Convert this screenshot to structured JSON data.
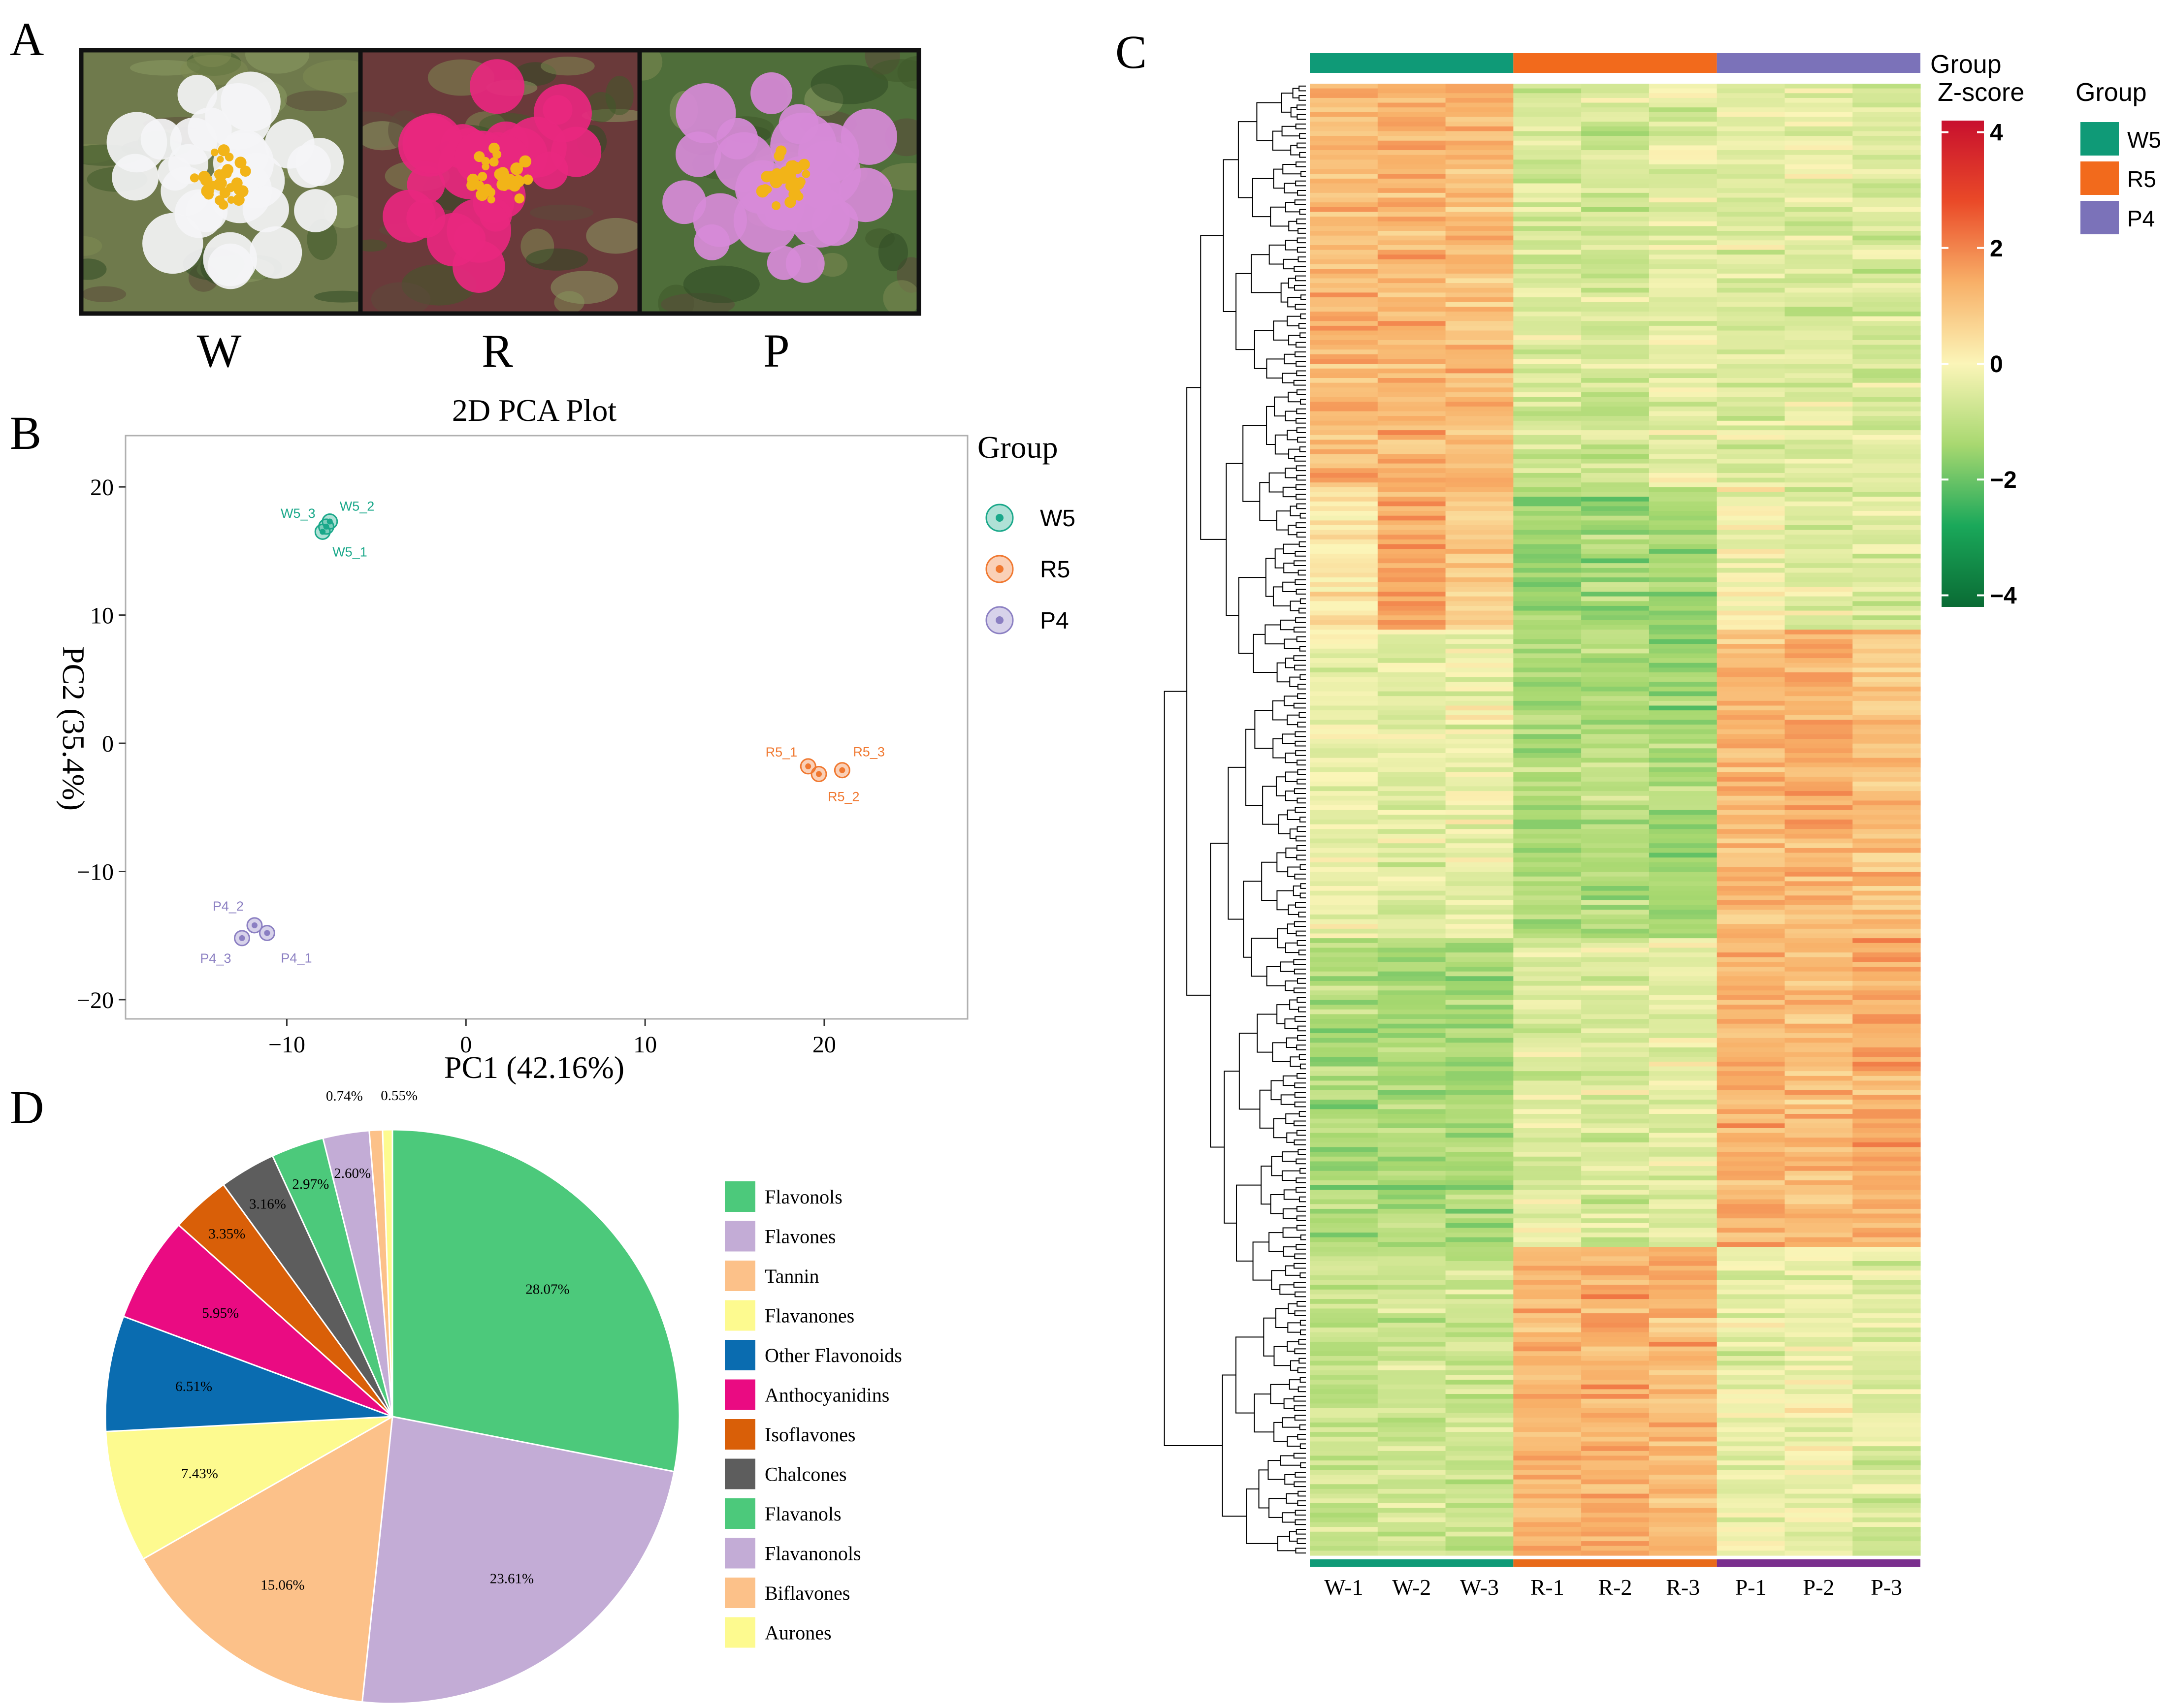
{
  "panels": {
    "A": {
      "label": "A",
      "photos": [
        {
          "caption": "W",
          "petal_color": "#f4f4f6",
          "background": "#6f7a4c"
        },
        {
          "caption": "R",
          "petal_color": "#e8277f",
          "background": "#6a3a3a"
        },
        {
          "caption": "P",
          "petal_color": "#d78ad8",
          "background": "#4f6e3a"
        }
      ]
    },
    "B": {
      "label": "B"
    },
    "C": {
      "label": "C"
    },
    "D": {
      "label": "D"
    }
  },
  "chart_data": [
    {
      "type": "scatter",
      "title": "2D PCA Plot",
      "xlabel": "PC1 (42.16%)",
      "ylabel": "PC2 (35.4%)",
      "xlim": [
        -19,
        28
      ],
      "ylim": [
        -21.5,
        24
      ],
      "xticks": [
        -10,
        0,
        10,
        20
      ],
      "yticks": [
        -20,
        -10,
        0,
        10,
        20
      ],
      "legend_title": "Group",
      "series": [
        {
          "name": "W5",
          "color": "#1aa88a",
          "points": [
            {
              "label": "W5_1",
              "x": -8.0,
              "y": 16.5
            },
            {
              "label": "W5_2",
              "x": -7.6,
              "y": 17.3
            },
            {
              "label": "W5_3",
              "x": -7.8,
              "y": 16.9
            }
          ]
        },
        {
          "name": "R5",
          "color": "#f07830",
          "points": [
            {
              "label": "R5_1",
              "x": 19.1,
              "y": -1.8
            },
            {
              "label": "R5_2",
              "x": 19.7,
              "y": -2.4
            },
            {
              "label": "R5_3",
              "x": 21.0,
              "y": -2.1
            }
          ]
        },
        {
          "name": "P4",
          "color": "#8b7fc2",
          "points": [
            {
              "label": "P4_1",
              "x": -11.1,
              "y": -14.8
            },
            {
              "label": "P4_2",
              "x": -11.8,
              "y": -14.2
            },
            {
              "label": "P4_3",
              "x": -12.5,
              "y": -15.2
            }
          ]
        }
      ]
    },
    {
      "type": "heatmap",
      "columns": [
        "W-1",
        "W-2",
        "W-3",
        "R-1",
        "R-2",
        "R-3",
        "P-1",
        "P-2",
        "P-3"
      ],
      "groups": [
        {
          "name": "W5",
          "color": "#0f9a77",
          "columns": 3,
          "bottom_color": "#0f9a77"
        },
        {
          "name": "R5",
          "color": "#f26a1c",
          "columns": 3,
          "bottom_color": "#e86a1a"
        },
        {
          "name": "P4",
          "color": "#7b72b9",
          "columns": 3,
          "bottom_color": "#7a2f8e"
        }
      ],
      "group_label": "Group",
      "scale_label": "Z-score",
      "scale_ticks": [
        4,
        2,
        0,
        -2,
        -4
      ],
      "scale_range": [
        -4.2,
        4.2
      ],
      "scale_colors": [
        "#0a6b34",
        "#1aa85a",
        "#a8d870",
        "#fbf5b8",
        "#f8b068",
        "#ea4a28",
        "#c8102e"
      ],
      "row_count": 310,
      "row_blocks": [
        {
          "rows": 85,
          "means": [
            1.2,
            1.3,
            1.1,
            -0.6,
            -0.7,
            -0.4,
            -0.5,
            -0.4,
            -0.6
          ]
        },
        {
          "rows": 30,
          "means": [
            0.3,
            1.5,
            0.8,
            -1.6,
            -1.4,
            -1.5,
            -0.1,
            -0.5,
            -0.5
          ]
        },
        {
          "rows": 65,
          "means": [
            -0.3,
            -0.4,
            -0.3,
            -1.3,
            -1.2,
            -1.4,
            1.2,
            1.4,
            1.0
          ]
        },
        {
          "rows": 65,
          "means": [
            -1.3,
            -1.3,
            -1.4,
            -0.5,
            -0.5,
            -0.4,
            1.3,
            1.1,
            1.4
          ]
        },
        {
          "rows": 65,
          "means": [
            -0.9,
            -0.8,
            -0.8,
            1.3,
            1.4,
            1.2,
            -0.4,
            -0.2,
            -0.5
          ]
        }
      ]
    },
    {
      "type": "pie",
      "slices": [
        {
          "label": "Flavonols",
          "value": 28.07,
          "pct_label": "28.07%",
          "color": "#4cc97b"
        },
        {
          "label": "Flavones",
          "value": 23.61,
          "pct_label": "23.61%",
          "color": "#c3acd6"
        },
        {
          "label": "Tannin",
          "value": 15.06,
          "pct_label": "15.06%",
          "color": "#fcc189"
        },
        {
          "label": "Flavanones",
          "value": 7.43,
          "pct_label": "7.43%",
          "color": "#fdfa8f"
        },
        {
          "label": "Other Flavonoids",
          "value": 6.51,
          "pct_label": "6.51%",
          "color": "#0a6cb0"
        },
        {
          "label": "Anthocyanidins",
          "value": 5.95,
          "pct_label": "5.95%",
          "color": "#ea0b82"
        },
        {
          "label": "Isoflavones",
          "value": 3.35,
          "pct_label": "3.35%",
          "color": "#d95f08"
        },
        {
          "label": "Chalcones",
          "value": 3.16,
          "pct_label": "3.16%",
          "color": "#5d5d5d"
        },
        {
          "label": "Flavanols",
          "value": 2.97,
          "pct_label": "2.97%",
          "color": "#4cc97b"
        },
        {
          "label": "Flavanonols",
          "value": 2.6,
          "pct_label": "2.60%",
          "color": "#c3acd6"
        },
        {
          "label": "Biflavones",
          "value": 0.74,
          "pct_label": "0.74%",
          "color": "#fcc189"
        },
        {
          "label": "Aurones",
          "value": 0.55,
          "pct_label": "0.55%",
          "color": "#fdfa8f"
        }
      ]
    }
  ]
}
